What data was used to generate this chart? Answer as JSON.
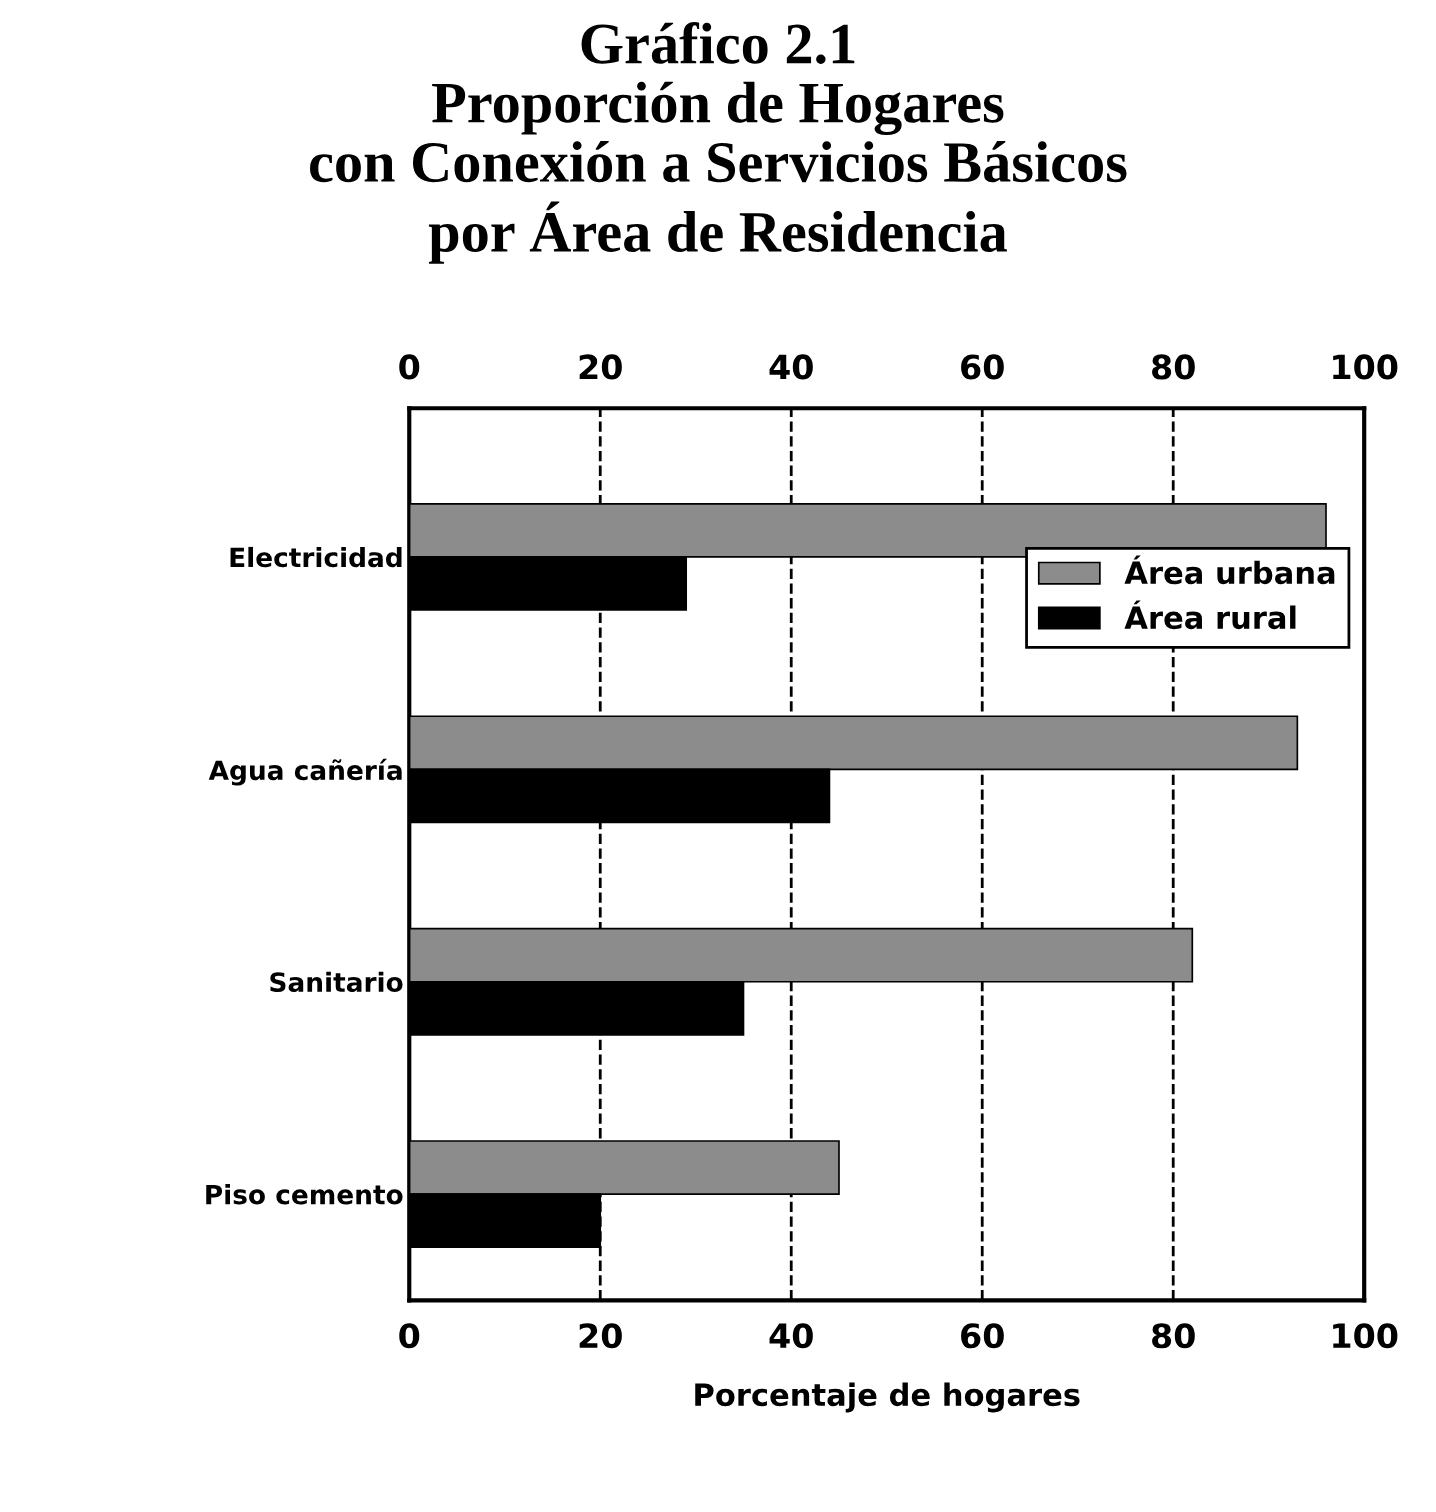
{
  "chart_data": {
    "type": "bar",
    "orientation": "horizontal",
    "title": "Gráfico 2.1\nProporción de Hogares\ncon Conexión a Servicios Básicos\npor Área de Residencia",
    "xlabel": "Porcentaje de hogares",
    "categories": [
      "Electricidad",
      "Agua cañería",
      "Sanitario",
      "Piso cemento"
    ],
    "series": [
      {
        "name": "Área urbana",
        "color": "#8c8c8c",
        "values": [
          96,
          93,
          82,
          45
        ]
      },
      {
        "name": "Área rural",
        "color": "#000000",
        "values": [
          29,
          44,
          35,
          20
        ]
      }
    ],
    "xlim": [
      0,
      100
    ],
    "xticks": [
      0,
      20,
      40,
      60,
      80,
      100
    ],
    "x2lim": [
      0,
      100
    ],
    "x2ticks": [
      0,
      20,
      40,
      60,
      80,
      100
    ],
    "grid": "x",
    "legend": "top right"
  }
}
